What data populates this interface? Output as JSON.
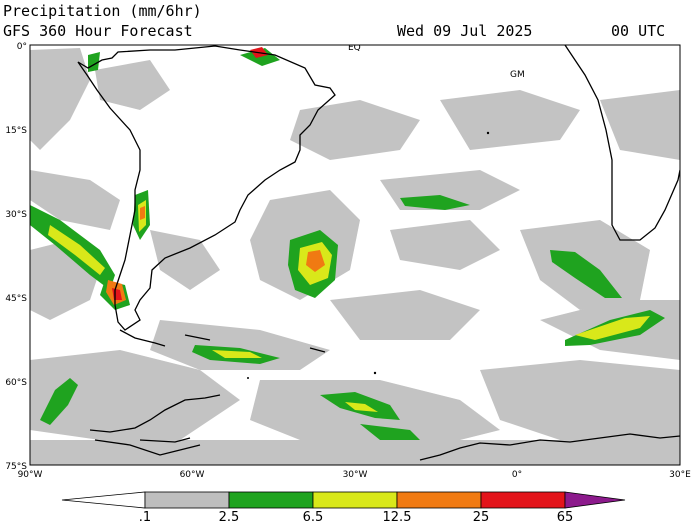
{
  "header": {
    "title": "Precipitation (mm/6hr)",
    "subtitle": "GFS 360 Hour Forecast",
    "date": "Wed 09 Jul 2025",
    "time": "00 UTC"
  },
  "map": {
    "lat_labels": [
      "0°",
      "15°S",
      "30°S",
      "45°S",
      "60°S",
      "75°S"
    ],
    "lon_labels": [
      "90°W",
      "60°W",
      "30°W",
      "0°",
      "30°E"
    ],
    "marker_eq": "EQ",
    "marker_gm": "GM"
  },
  "colorbar": {
    "colors": [
      "#ffffff",
      "#bebebe",
      "#1fa31f",
      "#d9e81a",
      "#f07a12",
      "#e3141a",
      "#8c1a8c"
    ],
    "labels": [
      ".1",
      "2.5",
      "6.5",
      "12.5",
      "25",
      "65"
    ]
  }
}
